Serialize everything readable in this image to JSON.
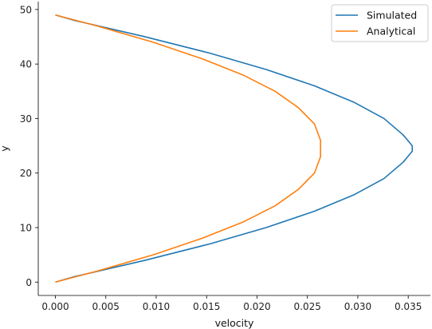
{
  "chart_data": {
    "type": "line",
    "title": "",
    "xlabel": "velocity",
    "ylabel": "y",
    "xlim": [
      -0.0017,
      0.0372
    ],
    "ylim": [
      -2.45,
      51.45
    ],
    "xticks": [
      0.0,
      0.005,
      0.01,
      0.015,
      0.02,
      0.025,
      0.03,
      0.035
    ],
    "xtick_labels": [
      "0.000",
      "0.005",
      "0.010",
      "0.015",
      "0.020",
      "0.025",
      "0.030",
      "0.035"
    ],
    "yticks": [
      0,
      10,
      20,
      30,
      40,
      50
    ],
    "ytick_labels": [
      "0",
      "10",
      "20",
      "30",
      "40",
      "50"
    ],
    "grid": false,
    "legend_position": "top-right",
    "series": [
      {
        "name": "Simulated",
        "color": "#1f77b4",
        "x": [
          0.0,
          0.0019,
          0.0089,
          0.0153,
          0.0209,
          0.0257,
          0.0296,
          0.0326,
          0.0345,
          0.0354,
          0.0354,
          0.0345,
          0.0326,
          0.0296,
          0.0257,
          0.0209,
          0.0153,
          0.0089,
          0.0019,
          0.0
        ],
        "y": [
          0,
          1,
          4,
          7,
          10,
          13,
          16,
          19,
          22,
          24,
          25,
          27,
          30,
          33,
          36,
          39,
          42,
          45,
          48,
          49
        ]
      },
      {
        "name": "Analytical",
        "color": "#ff7f0e",
        "x": [
          0.0,
          0.0041,
          0.0097,
          0.0145,
          0.0186,
          0.0218,
          0.0241,
          0.0257,
          0.0263,
          0.0263,
          0.0257,
          0.0241,
          0.0218,
          0.0186,
          0.0145,
          0.0097,
          0.0041,
          0.0
        ],
        "y": [
          0,
          2,
          5,
          8,
          11,
          14,
          17,
          20,
          23,
          26,
          29,
          32,
          35,
          38,
          41,
          44,
          47,
          49
        ]
      }
    ]
  }
}
